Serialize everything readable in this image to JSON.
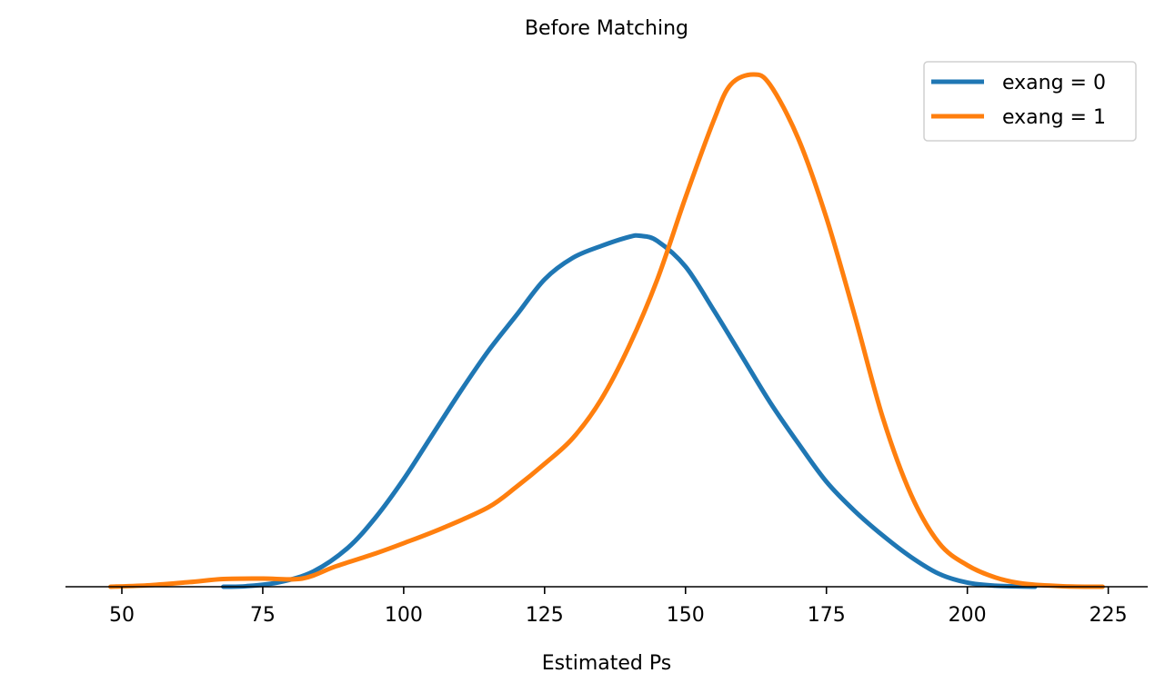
{
  "chart_data": {
    "type": "line",
    "title": "Before Matching",
    "xlabel": "Estimated Ps",
    "ylabel": "",
    "xlim": [
      40,
      232
    ],
    "ylim": [
      0,
      1.0
    ],
    "xticks": [
      50,
      75,
      100,
      125,
      150,
      175,
      200,
      225
    ],
    "grid": false,
    "legend_position": "top-right",
    "series": [
      {
        "name": "exang = 0",
        "color": "#1f77b4",
        "points": [
          [
            68,
            0.0
          ],
          [
            72,
            0.001
          ],
          [
            78,
            0.009
          ],
          [
            84,
            0.03
          ],
          [
            90,
            0.075
          ],
          [
            95,
            0.135
          ],
          [
            100,
            0.21
          ],
          [
            105,
            0.295
          ],
          [
            110,
            0.38
          ],
          [
            115,
            0.46
          ],
          [
            120,
            0.53
          ],
          [
            125,
            0.6
          ],
          [
            130,
            0.642
          ],
          [
            135,
            0.665
          ],
          [
            140,
            0.683
          ],
          [
            142,
            0.685
          ],
          [
            145,
            0.675
          ],
          [
            150,
            0.625
          ],
          [
            155,
            0.54
          ],
          [
            160,
            0.45
          ],
          [
            165,
            0.36
          ],
          [
            170,
            0.28
          ],
          [
            175,
            0.205
          ],
          [
            180,
            0.148
          ],
          [
            185,
            0.1
          ],
          [
            190,
            0.058
          ],
          [
            195,
            0.025
          ],
          [
            200,
            0.008
          ],
          [
            205,
            0.002
          ],
          [
            212,
            0.0
          ]
        ]
      },
      {
        "name": "exang = 1",
        "color": "#ff7f0e",
        "points": [
          [
            48,
            0.0
          ],
          [
            55,
            0.003
          ],
          [
            62,
            0.009
          ],
          [
            68,
            0.015
          ],
          [
            75,
            0.016
          ],
          [
            82,
            0.016
          ],
          [
            88,
            0.04
          ],
          [
            95,
            0.065
          ],
          [
            100,
            0.085
          ],
          [
            107,
            0.115
          ],
          [
            115,
            0.155
          ],
          [
            120,
            0.195
          ],
          [
            125,
            0.24
          ],
          [
            130,
            0.29
          ],
          [
            135,
            0.365
          ],
          [
            140,
            0.47
          ],
          [
            145,
            0.6
          ],
          [
            150,
            0.76
          ],
          [
            155,
            0.91
          ],
          [
            158,
            0.98
          ],
          [
            162,
            1.0
          ],
          [
            165,
            0.98
          ],
          [
            170,
            0.875
          ],
          [
            175,
            0.72
          ],
          [
            180,
            0.53
          ],
          [
            185,
            0.33
          ],
          [
            190,
            0.18
          ],
          [
            195,
            0.085
          ],
          [
            200,
            0.042
          ],
          [
            205,
            0.018
          ],
          [
            210,
            0.006
          ],
          [
            217,
            0.001
          ],
          [
            224,
            0.0
          ]
        ]
      }
    ]
  }
}
